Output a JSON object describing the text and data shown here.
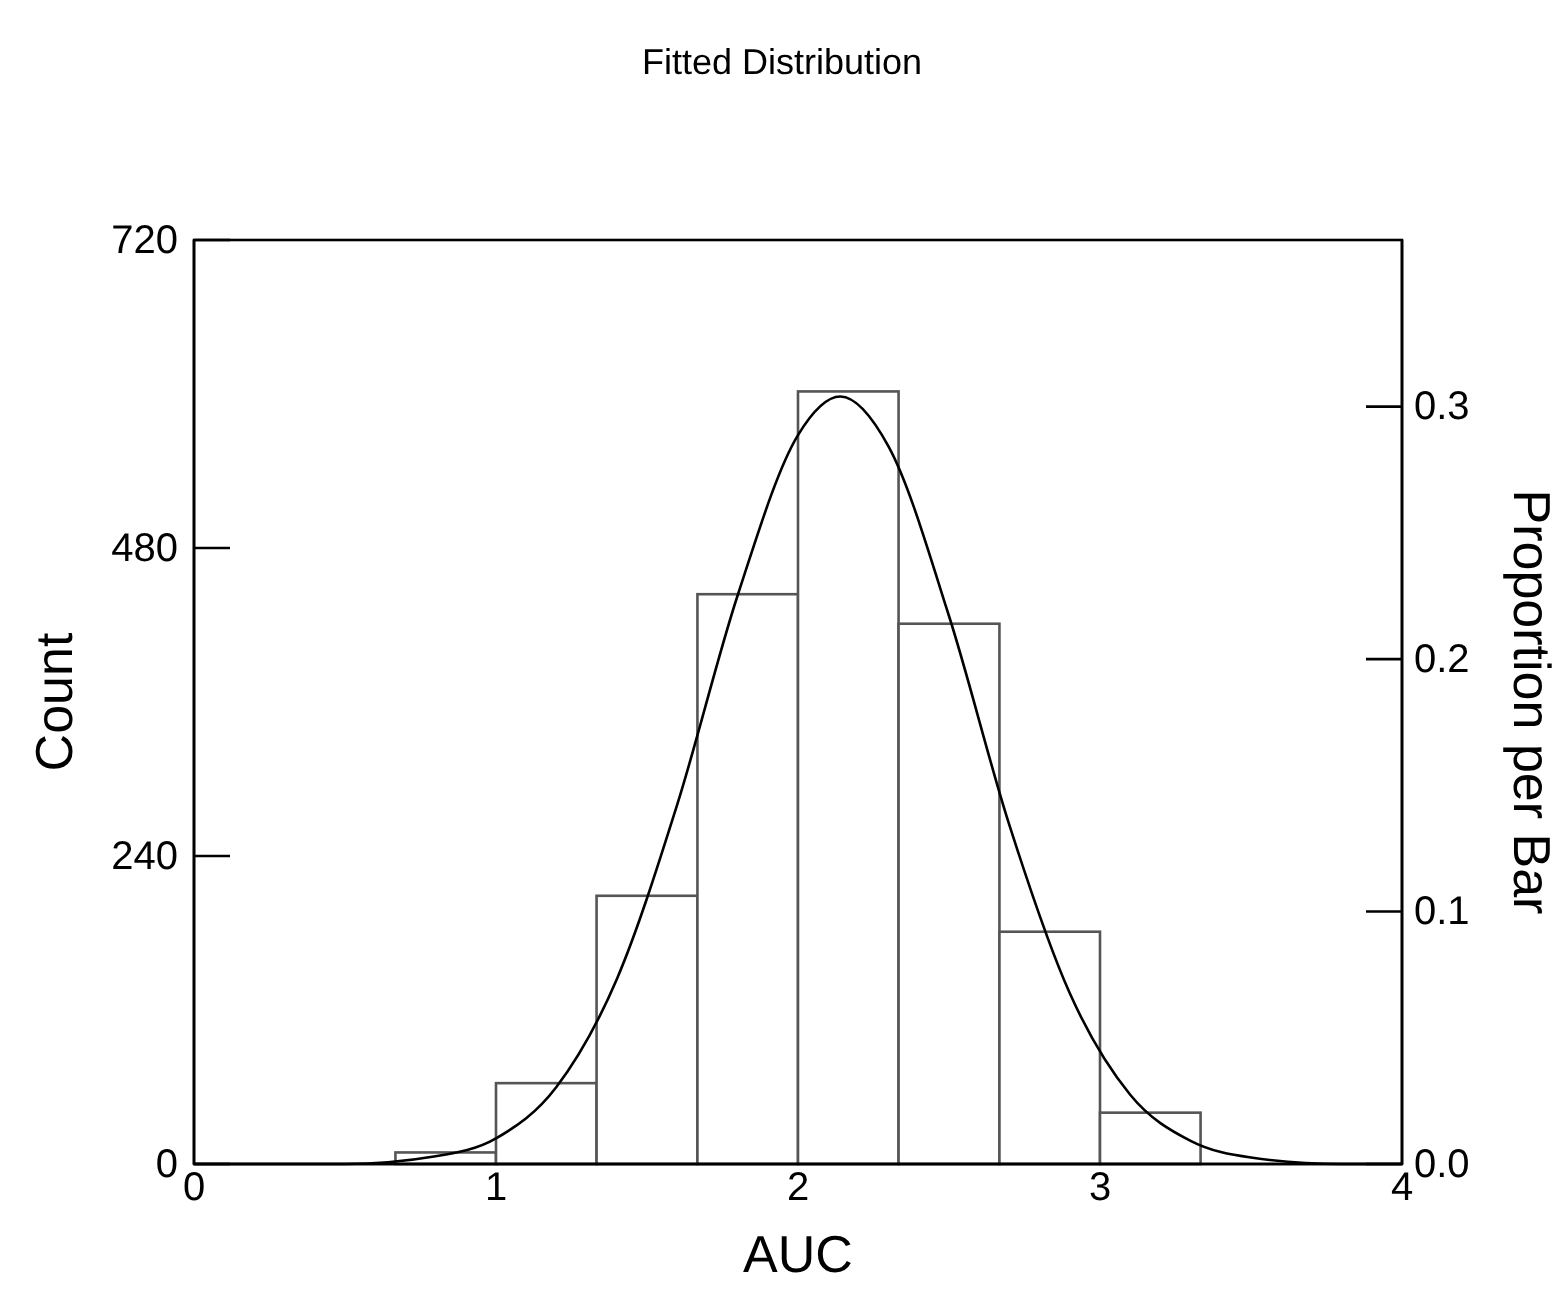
{
  "chart_data": {
    "type": "histogram",
    "title": "Fitted Distribution",
    "xlabel": "AUC",
    "ylabel": "Count",
    "y2label": "Proportion per Bar",
    "xlim": [
      0,
      4
    ],
    "xticks": [
      0,
      1,
      2,
      3,
      4
    ],
    "ylim": [
      0,
      720
    ],
    "yticks": [
      0,
      240,
      480,
      720
    ],
    "y2lim": [
      0,
      0.366
    ],
    "y2ticks": [
      {
        "value": 0,
        "label": "0.0"
      },
      0.1,
      0.2,
      0.3
    ],
    "series": [
      {
        "color": "#ffffff",
        "bins": [
          0.667,
          1,
          1.333,
          1.667,
          2,
          2.333,
          2.667,
          3,
          3.333
        ],
        "values": [
          9,
          63,
          209,
          444,
          602,
          421,
          181,
          40
        ]
      },
      {
        "type": "line",
        "color": "#000000",
        "x": [
          0,
          0.5,
          0.8,
          1.0,
          1.2,
          1.4,
          1.6,
          1.8,
          2.0,
          2.14,
          2.3,
          2.5,
          2.7,
          2.9,
          3.1,
          3.3,
          3.5,
          3.8,
          4
        ],
        "values": [
          0,
          0,
          6,
          20,
          60,
          144,
          280,
          443,
          568,
          598,
          559,
          427,
          264,
          133,
          54,
          18,
          5,
          0,
          0
        ]
      }
    ]
  }
}
